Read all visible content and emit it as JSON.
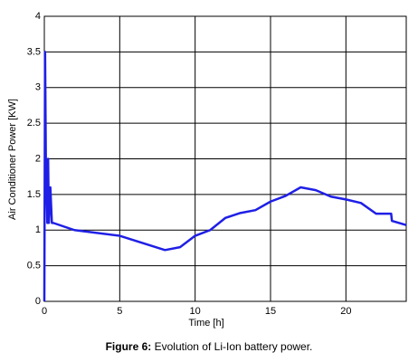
{
  "chart_data": {
    "type": "line",
    "x_label": "Time [h]",
    "y_label": "Air Conditioner Power [KW]",
    "caption_label": "Figure 6:",
    "caption": "Evolution of Li-Ion battery power.",
    "x": [
      0,
      0.05,
      0.1,
      0.2,
      0.25,
      0.3,
      0.4,
      0.5,
      0.6,
      2,
      5,
      8,
      9,
      10,
      11,
      12,
      13,
      14,
      15,
      16,
      17,
      18,
      19,
      20,
      21,
      22,
      23,
      23.05,
      24
    ],
    "series": [
      {
        "color": "#1f1fe6",
        "values": [
          0,
          3.5,
          2.0,
          1.1,
          2.0,
          1.1,
          1.6,
          1.1,
          1.1,
          1.0,
          0.92,
          0.72,
          0.76,
          0.92,
          1.0,
          1.17,
          1.24,
          1.28,
          1.4,
          1.48,
          1.6,
          1.56,
          1.47,
          1.43,
          1.38,
          1.23,
          1.23,
          1.13,
          1.07
        ]
      }
    ],
    "xlim": [
      0,
      24
    ],
    "xticks": [
      0,
      5,
      10,
      15,
      20
    ],
    "ylim": [
      0,
      4
    ],
    "yticks": [
      0,
      0.5,
      1,
      1.5,
      2,
      2.5,
      3,
      3.5,
      4
    ],
    "grid": true
  }
}
